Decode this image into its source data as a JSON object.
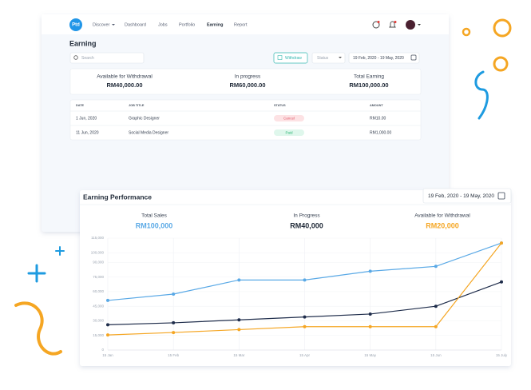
{
  "nav": {
    "logo": "Ptd",
    "items": [
      "Discover",
      "Dashboard",
      "Jobs",
      "Portfolio",
      "Earning",
      "Report"
    ]
  },
  "earning": {
    "title": "Earning",
    "search": "Search",
    "withdraw": "Withdraw",
    "status": "Status",
    "date_range": "19 Feb, 2020 - 19 May, 2020",
    "summary": [
      {
        "label": "Available for Withdrawal",
        "value": "RM40,000.00"
      },
      {
        "label": "In progress",
        "value": "RM60,000.00"
      },
      {
        "label": "Total Earning",
        "value": "RM100,000.00"
      }
    ],
    "table": {
      "header": [
        "DATE",
        "JOB TITLE",
        "STATUS",
        "AMOUNT"
      ],
      "rows": [
        [
          "1 Jun, 2020",
          "Graphic Designer",
          "Cancel",
          "RM10.00"
        ],
        [
          "11 Jun, 2020",
          "Social Media Designer",
          "Paid",
          "RM1,000.00"
        ]
      ]
    }
  },
  "chart_data": {
    "type": "line",
    "title": "Earning Performance",
    "date_range": "19 Feb, 2020 - 19 May, 2020",
    "summary": [
      "RM100,000",
      "RM40,000",
      "RM20,000"
    ],
    "categories": [
      "15 Jan",
      "15 Feb",
      "15 Mar",
      "15 Apr",
      "15 May",
      "15 Jun",
      "15 July"
    ],
    "series": [
      {
        "name": "Total Sales",
        "color": "#5aa9e6",
        "values": [
          51000,
          57500,
          72000,
          72000,
          81000,
          86000,
          110000
        ]
      },
      {
        "name": "In Progress",
        "color": "#1f2d4b",
        "values": [
          26000,
          28000,
          31000,
          34000,
          37000,
          45000,
          70000
        ]
      },
      {
        "name": "Available for Withdrawal",
        "color": "#f5a623",
        "values": [
          15500,
          18000,
          21000,
          24000,
          24000,
          24000,
          110000
        ]
      }
    ],
    "ylim": [
      0,
      115000
    ],
    "yticks": [
      0,
      {
        "value": 15000,
        "label": "15,000"
      },
      {
        "value": 30000,
        "label": "30,000"
      },
      {
        "value": 45000,
        "label": "45,000"
      },
      {
        "value": 60000,
        "label": "60,000"
      },
      {
        "value": 75000,
        "label": "75,000"
      },
      {
        "value": 90000,
        "label": "90,000"
      },
      {
        "value": 100000,
        "label": "100,000"
      },
      {
        "value": 115000,
        "label": "115,000"
      }
    ],
    "grid": true
  }
}
